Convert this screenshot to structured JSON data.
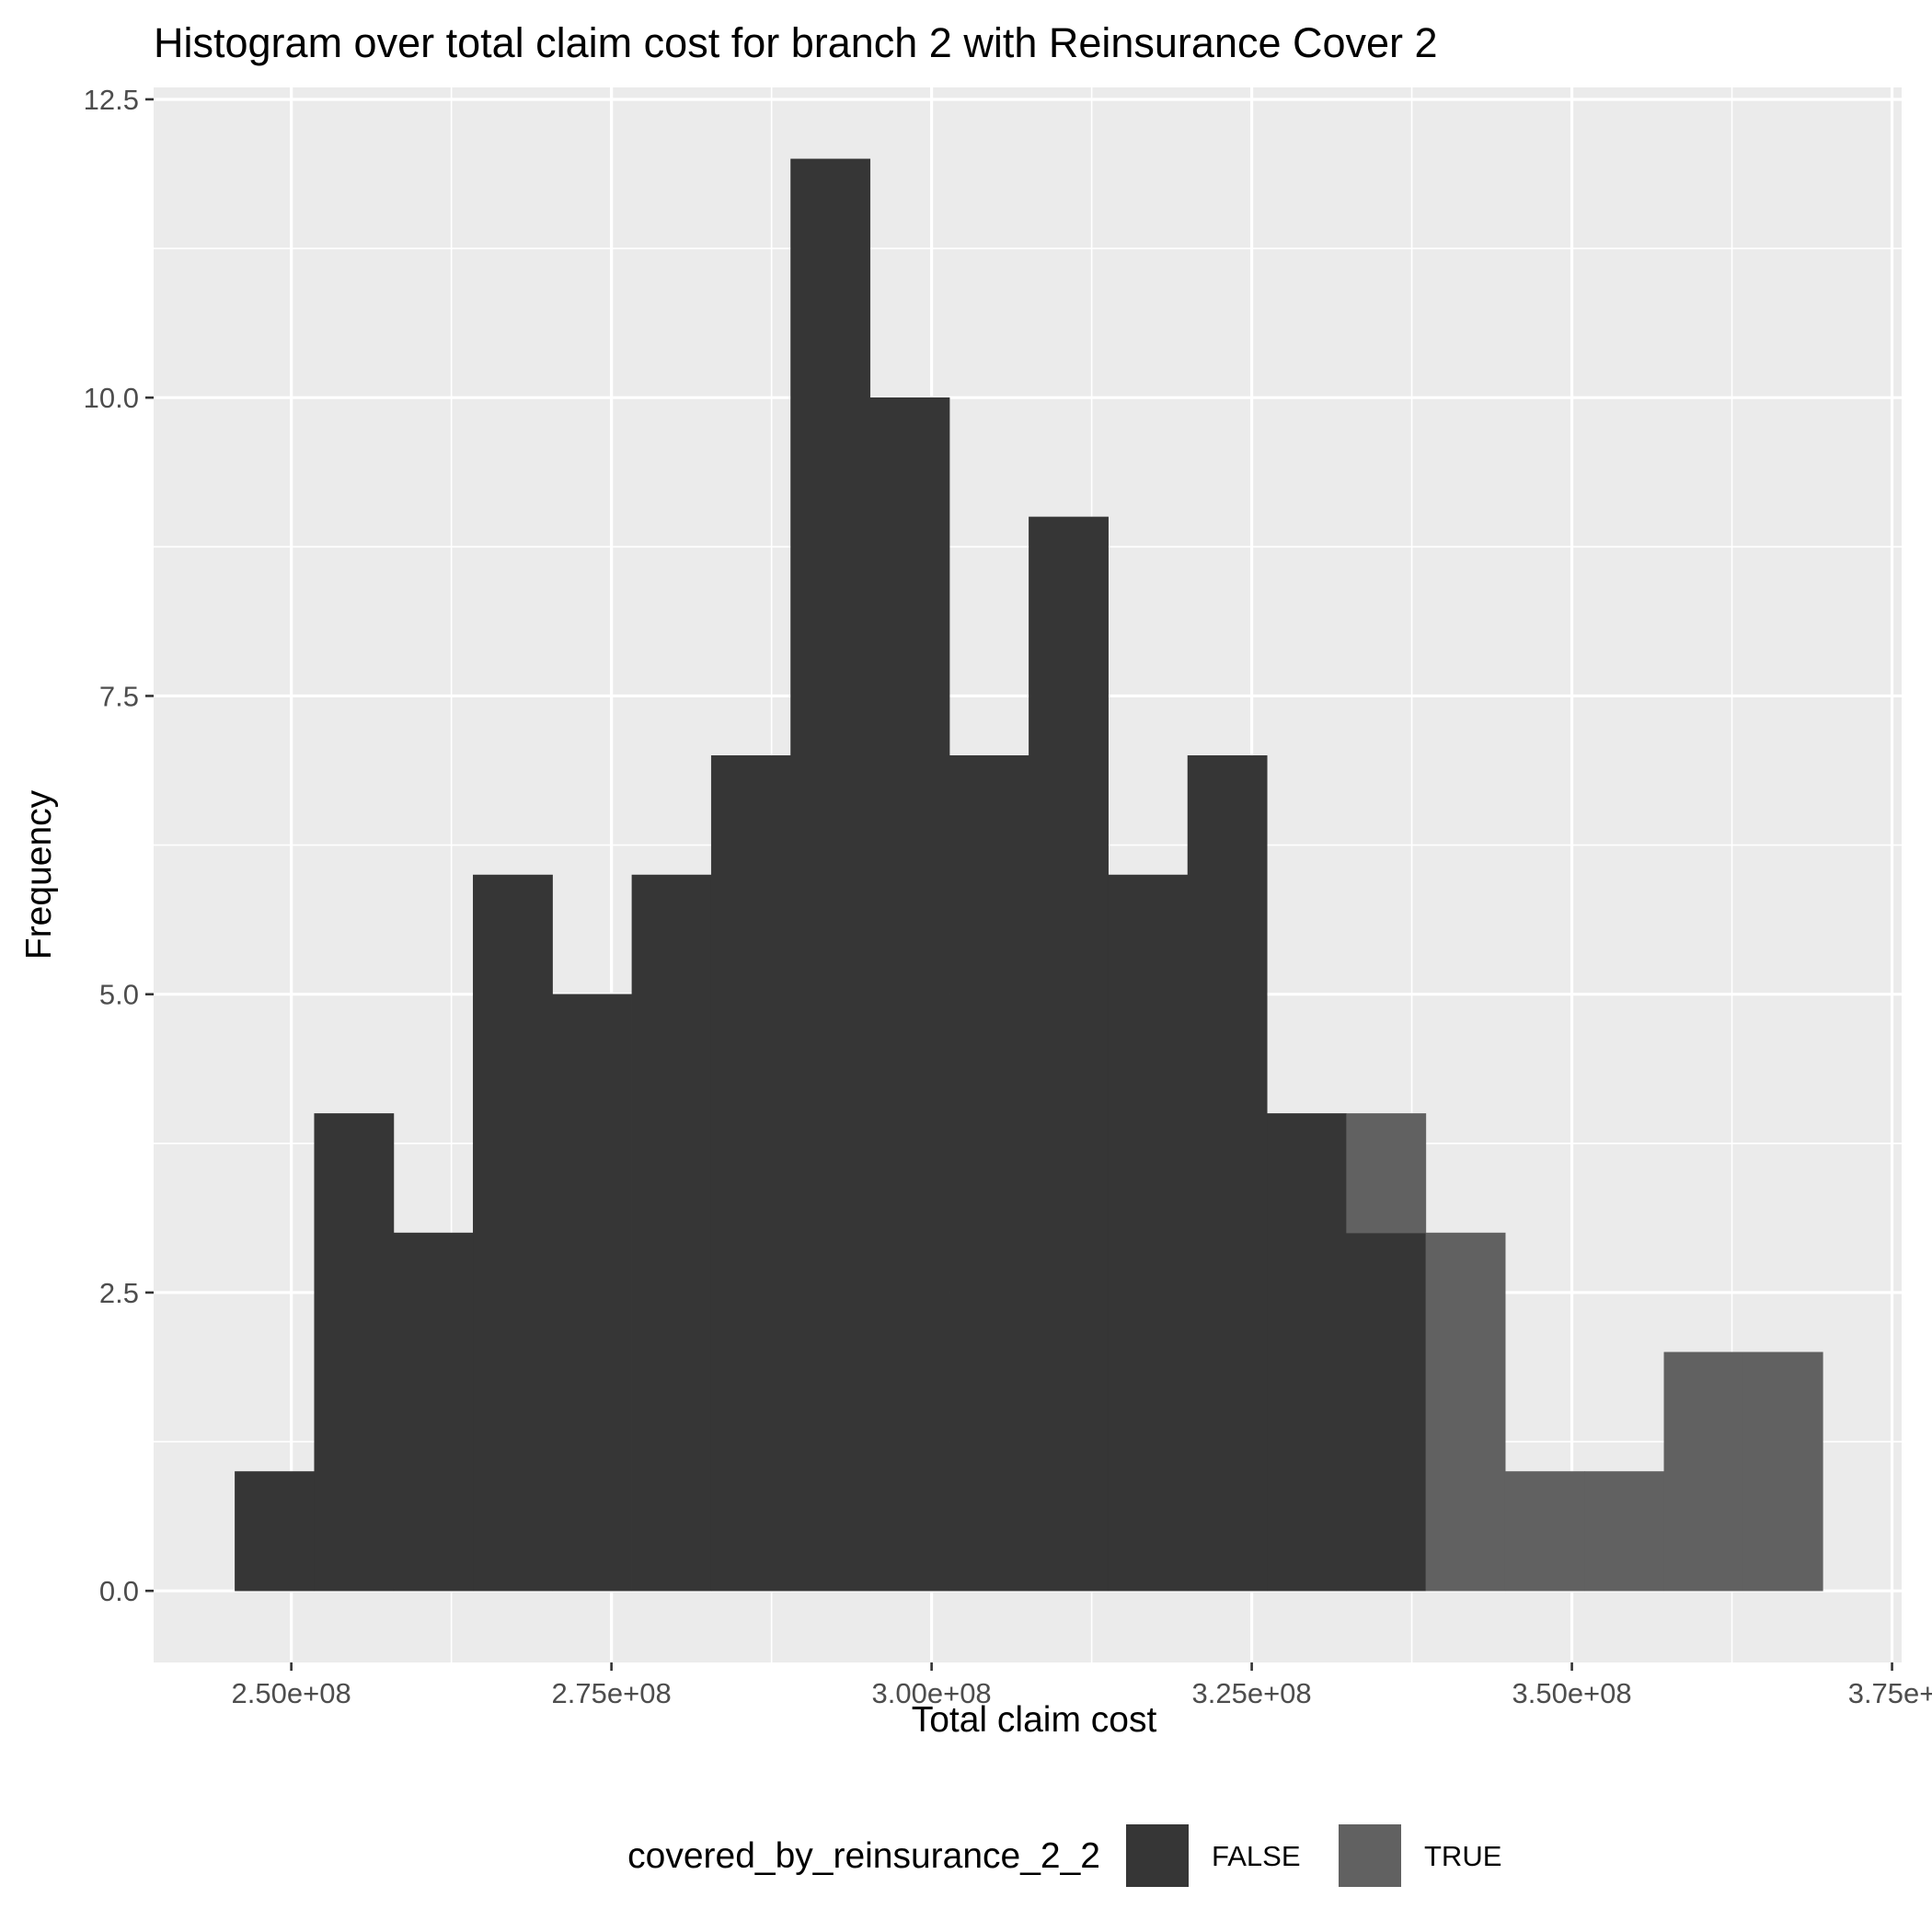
{
  "chart_data": {
    "type": "bar",
    "title": "Histogram over total claim cost for branch 2 with Reinsurance Cover 2",
    "xlabel": "Total claim cost",
    "ylabel": "Frequency",
    "xlim": [
      239250000,
      375750000
    ],
    "ylim": [
      -0.6,
      12.6
    ],
    "x_ticks": [
      250000000,
      275000000,
      300000000,
      325000000,
      350000000,
      375000000
    ],
    "x_tick_labels": [
      "2.50e+08",
      "2.75e+08",
      "3.00e+08",
      "3.25e+08",
      "3.50e+08",
      "3.75e+"
    ],
    "y_ticks": [
      0,
      2.5,
      5,
      7.5,
      10,
      12.5
    ],
    "y_tick_labels": [
      "0.0",
      "2.5",
      "5.0",
      "7.5",
      "10.0",
      "12.5"
    ],
    "bin_width": 6200000,
    "bin_centers": [
      248700000,
      254900000,
      261100000,
      267300000,
      273500000,
      279700000,
      285900000,
      292100000,
      298300000,
      304500000,
      310700000,
      316900000,
      323100000,
      329300000,
      335500000,
      341700000,
      347900000,
      354100000,
      360300000,
      366500000
    ],
    "series": [
      {
        "name": "FALSE",
        "color": "#363636",
        "values": [
          1,
          4,
          3,
          6,
          5,
          6,
          7,
          12,
          10,
          7,
          9,
          6,
          7,
          4,
          3,
          0,
          0,
          0,
          0,
          0
        ]
      },
      {
        "name": "TRUE",
        "color": "#616161",
        "values": [
          0,
          0,
          0,
          0,
          0,
          0,
          0,
          0,
          0,
          0,
          0,
          0,
          0,
          0,
          1,
          3,
          1,
          1,
          2,
          2
        ]
      }
    ],
    "stacked": true,
    "grid": true,
    "legend": {
      "title": "covered_by_reinsurance_2_2",
      "position": "bottom",
      "entries": [
        "FALSE",
        "TRUE"
      ]
    }
  }
}
